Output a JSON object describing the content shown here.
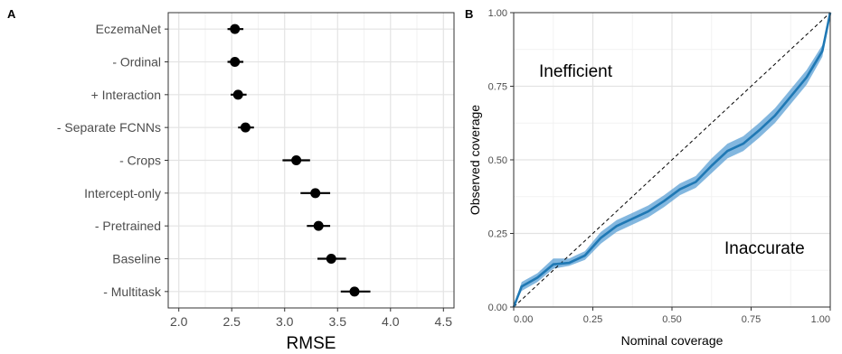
{
  "chart_data": [
    {
      "panel_label": "A",
      "type": "scatter",
      "subtype": "dot-and-whisker",
      "title": "",
      "xlabel": "RMSE",
      "ylabel": "",
      "xlim": [
        1.9,
        4.6
      ],
      "xticks": [
        2.0,
        2.5,
        3.0,
        3.5,
        4.0,
        4.5
      ],
      "xtick_labels": [
        "2.0",
        "2.5",
        "3.0",
        "3.5",
        "4.0",
        "4.5"
      ],
      "grid": true,
      "categories": [
        "EczemaNet",
        "- Ordinal",
        "+ Interaction",
        "- Separate FCNNs",
        "- Crops",
        "Intercept-only",
        "- Pretrained",
        "Baseline",
        "- Multitask"
      ],
      "values": [
        2.53,
        2.53,
        2.56,
        2.63,
        3.11,
        3.29,
        3.32,
        3.44,
        3.66
      ],
      "lower": [
        2.46,
        2.46,
        2.49,
        2.56,
        2.98,
        3.15,
        3.21,
        3.31,
        3.53
      ],
      "upper": [
        2.61,
        2.61,
        2.64,
        2.71,
        3.24,
        3.43,
        3.43,
        3.58,
        3.81
      ]
    },
    {
      "panel_label": "B",
      "type": "line",
      "title": "",
      "xlabel": "Nominal coverage",
      "ylabel": "Observed coverage",
      "xlim": [
        0,
        1
      ],
      "ylim": [
        0,
        1
      ],
      "xticks": [
        0,
        0.25,
        0.5,
        0.75,
        1
      ],
      "xtick_labels": [
        "0.00",
        "0.25",
        "0.50",
        "0.75",
        "1.00"
      ],
      "yticks": [
        0,
        0.25,
        0.5,
        0.75,
        1
      ],
      "ytick_labels": [
        "0.00",
        "0.25",
        "0.50",
        "0.75",
        "1.00"
      ],
      "grid": true,
      "annotations": [
        "Inefficient",
        "Inaccurate"
      ],
      "line_color": "#1f78b4",
      "band_color": "#5a9fd4",
      "series": [
        {
          "x": [
            0,
            0.025,
            0.075,
            0.125,
            0.175,
            0.225,
            0.275,
            0.325,
            0.375,
            0.425,
            0.475,
            0.525,
            0.575,
            0.625,
            0.675,
            0.725,
            0.775,
            0.825,
            0.875,
            0.925,
            0.975,
            1.0
          ],
          "y": [
            0,
            0.07,
            0.1,
            0.145,
            0.15,
            0.175,
            0.235,
            0.275,
            0.3,
            0.325,
            0.36,
            0.4,
            0.425,
            0.48,
            0.53,
            0.555,
            0.6,
            0.65,
            0.715,
            0.78,
            0.87,
            1.0
          ],
          "lower": [
            0,
            0.055,
            0.085,
            0.13,
            0.14,
            0.16,
            0.215,
            0.255,
            0.28,
            0.305,
            0.34,
            0.38,
            0.405,
            0.455,
            0.505,
            0.53,
            0.575,
            0.625,
            0.69,
            0.755,
            0.85,
            1.0
          ],
          "upper": [
            0,
            0.085,
            0.115,
            0.165,
            0.165,
            0.19,
            0.255,
            0.295,
            0.32,
            0.345,
            0.38,
            0.42,
            0.445,
            0.505,
            0.555,
            0.58,
            0.625,
            0.675,
            0.74,
            0.805,
            0.89,
            1.0
          ]
        }
      ],
      "reference_line": {
        "x": [
          0,
          1
        ],
        "y": [
          0,
          1
        ],
        "style": "dashed"
      }
    }
  ]
}
